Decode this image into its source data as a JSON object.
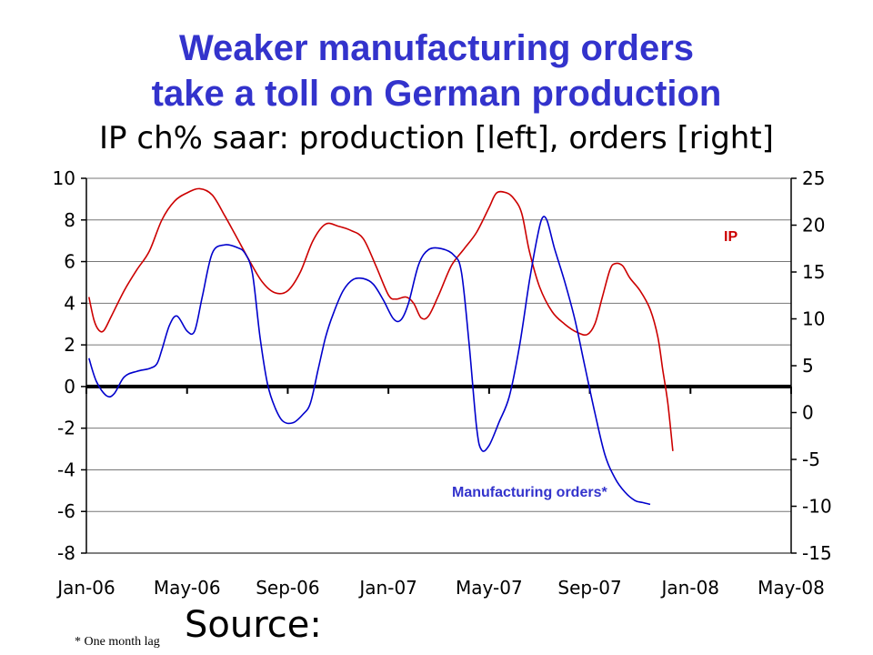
{
  "slide": {
    "title_line1": "Weaker manufacturing orders",
    "title_line2": "take a toll on German production",
    "subtitle": "IP ch% saar: production [left], orders [right]",
    "footnote": "* One month lag",
    "source_label": "Source:"
  },
  "chart_data": {
    "type": "line",
    "title": "IP ch% saar: production [left], orders [right]",
    "x_tick_labels": [
      "Jan-06",
      "May-06",
      "Sep-06",
      "Jan-07",
      "May-07",
      "Sep-07",
      "Jan-08",
      "May-08"
    ],
    "y_left_ticks": [
      "10",
      "8",
      "6",
      "4",
      "2",
      "0",
      "-2",
      "-4",
      "-6",
      "-8"
    ],
    "y_right_ticks": [
      "25",
      "20",
      "15",
      "10",
      "5",
      "0",
      "-5",
      "-10",
      "-15"
    ],
    "y_left_range": [
      -8,
      10
    ],
    "y_right_range": [
      -15,
      25
    ],
    "grid": "horizontal",
    "colors": {
      "ip": "#cc0000",
      "orders": "#0000cc",
      "title": "#3333cc"
    },
    "series": [
      {
        "name": "IP",
        "axis": "left",
        "color": "#cc0000",
        "points": [
          [
            0.1,
            4.3
          ],
          [
            0.3,
            3.2
          ],
          [
            0.5,
            2.7
          ],
          [
            0.7,
            2.7
          ],
          [
            1.0,
            3.4
          ],
          [
            1.5,
            4.6
          ],
          [
            2.0,
            5.6
          ],
          [
            2.5,
            6.5
          ],
          [
            3.0,
            8.0
          ],
          [
            3.5,
            8.9
          ],
          [
            4.0,
            9.3
          ],
          [
            4.5,
            9.5
          ],
          [
            5.0,
            9.2
          ],
          [
            5.5,
            8.2
          ],
          [
            6.0,
            7.1
          ],
          [
            6.5,
            6.0
          ],
          [
            7.0,
            5.0
          ],
          [
            7.5,
            4.5
          ],
          [
            8.0,
            4.6
          ],
          [
            8.5,
            5.5
          ],
          [
            9.0,
            7.0
          ],
          [
            9.5,
            7.8
          ],
          [
            10.0,
            7.7
          ],
          [
            10.5,
            7.5
          ],
          [
            11.0,
            7.1
          ],
          [
            11.5,
            5.8
          ],
          [
            12.0,
            4.4
          ],
          [
            12.3,
            4.2
          ],
          [
            12.7,
            4.3
          ],
          [
            13.0,
            4.0
          ],
          [
            13.3,
            3.3
          ],
          [
            13.6,
            3.4
          ],
          [
            14.0,
            4.4
          ],
          [
            14.5,
            5.8
          ],
          [
            15.0,
            6.6
          ],
          [
            15.5,
            7.4
          ],
          [
            16.0,
            8.6
          ],
          [
            16.3,
            9.3
          ],
          [
            16.7,
            9.3
          ],
          [
            17.0,
            9.0
          ],
          [
            17.3,
            8.3
          ],
          [
            17.6,
            6.5
          ],
          [
            18.0,
            4.8
          ],
          [
            18.5,
            3.6
          ],
          [
            19.0,
            3.0
          ],
          [
            19.5,
            2.6
          ],
          [
            19.9,
            2.5
          ],
          [
            20.2,
            3.0
          ],
          [
            20.5,
            4.3
          ],
          [
            20.8,
            5.6
          ],
          [
            21.0,
            5.9
          ],
          [
            21.3,
            5.8
          ],
          [
            21.6,
            5.2
          ],
          [
            22.0,
            4.6
          ],
          [
            22.4,
            3.7
          ],
          [
            22.7,
            2.4
          ],
          [
            22.9,
            0.8
          ],
          [
            23.1,
            -0.8
          ],
          [
            23.3,
            -3.1
          ]
        ]
      },
      {
        "name": "Manufacturing orders*",
        "axis": "right",
        "color": "#0000cc",
        "points": [
          [
            0.1,
            5.8
          ],
          [
            0.4,
            3.3
          ],
          [
            0.8,
            1.8
          ],
          [
            1.1,
            2.0
          ],
          [
            1.5,
            3.8
          ],
          [
            2.0,
            4.4
          ],
          [
            2.5,
            4.7
          ],
          [
            2.8,
            5.2
          ],
          [
            3.0,
            6.7
          ],
          [
            3.3,
            9.3
          ],
          [
            3.6,
            10.3
          ],
          [
            4.0,
            8.7
          ],
          [
            4.3,
            8.7
          ],
          [
            4.6,
            12.3
          ],
          [
            5.0,
            17.0
          ],
          [
            5.5,
            17.9
          ],
          [
            6.0,
            17.6
          ],
          [
            6.3,
            17.0
          ],
          [
            6.6,
            14.8
          ],
          [
            6.9,
            8.0
          ],
          [
            7.2,
            3.0
          ],
          [
            7.5,
            0.5
          ],
          [
            7.8,
            -0.9
          ],
          [
            8.2,
            -1.1
          ],
          [
            8.6,
            -0.2
          ],
          [
            8.9,
            1.0
          ],
          [
            9.2,
            4.5
          ],
          [
            9.5,
            8.0
          ],
          [
            9.8,
            10.5
          ],
          [
            10.2,
            13.0
          ],
          [
            10.6,
            14.2
          ],
          [
            11.0,
            14.3
          ],
          [
            11.4,
            13.7
          ],
          [
            11.8,
            12.0
          ],
          [
            12.2,
            10.0
          ],
          [
            12.5,
            9.9
          ],
          [
            12.8,
            11.7
          ],
          [
            13.2,
            15.8
          ],
          [
            13.6,
            17.4
          ],
          [
            14.1,
            17.5
          ],
          [
            14.6,
            16.8
          ],
          [
            14.9,
            15.0
          ],
          [
            15.2,
            7.5
          ],
          [
            15.5,
            -1.5
          ],
          [
            15.7,
            -4.0
          ],
          [
            16.0,
            -3.5
          ],
          [
            16.4,
            -1.0
          ],
          [
            16.8,
            1.7
          ],
          [
            17.2,
            7.0
          ],
          [
            17.6,
            14.0
          ],
          [
            17.9,
            18.5
          ],
          [
            18.1,
            20.7
          ],
          [
            18.3,
            20.5
          ],
          [
            18.6,
            17.5
          ],
          [
            19.0,
            14.0
          ],
          [
            19.4,
            10.0
          ],
          [
            19.8,
            5.0
          ],
          [
            20.2,
            0.0
          ],
          [
            20.6,
            -4.5
          ],
          [
            21.0,
            -7.0
          ],
          [
            21.4,
            -8.5
          ],
          [
            21.8,
            -9.4
          ],
          [
            22.1,
            -9.6
          ],
          [
            22.4,
            -9.8
          ]
        ]
      }
    ],
    "series_labels": {
      "ip": "IP",
      "orders": "Manufacturing orders*"
    }
  }
}
